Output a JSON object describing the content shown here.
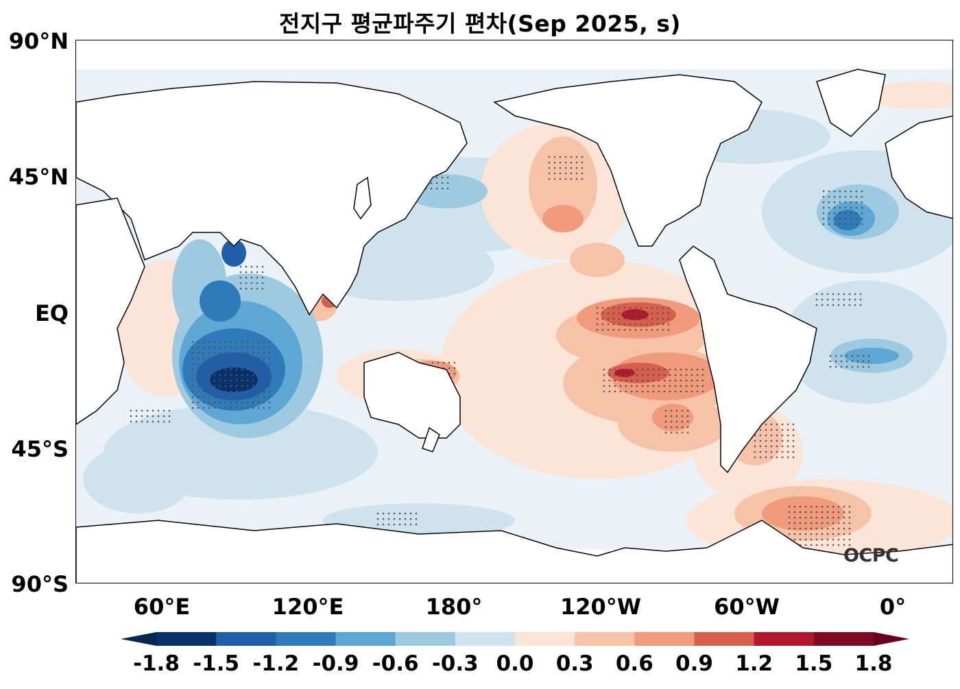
{
  "title": "전지구 평균파주기 편차(Sep 2025, s)",
  "lat_labels": [
    "90°N",
    "45°N",
    "EQ",
    "45°S",
    "90°S"
  ],
  "lon_labels": [
    "60°E",
    "120°E",
    "180°",
    "120°W",
    "60°W",
    "0°"
  ],
  "colorbar": {
    "ticks": [
      "-1.8",
      "-1.5",
      "-1.2",
      "-0.9",
      "-0.6",
      "-0.3",
      "0.0",
      "0.3",
      "0.6",
      "0.9",
      "1.2",
      "1.5",
      "1.8"
    ],
    "colors": [
      "#08306b",
      "#1f5ea8",
      "#2f7ab8",
      "#5ea6d3",
      "#9dcae1",
      "#cfe3ef",
      "#eaf2f7",
      "#fce4d6",
      "#f7c3a8",
      "#ef9b7c",
      "#d6604d",
      "#b2182b",
      "#7d0b22"
    ],
    "under_color": "#06264f",
    "over_color": "#67001f"
  },
  "logo": "OCPC",
  "colors": {
    "land": "#ffffff",
    "coast": "#000000",
    "stipple": "#555555"
  }
}
